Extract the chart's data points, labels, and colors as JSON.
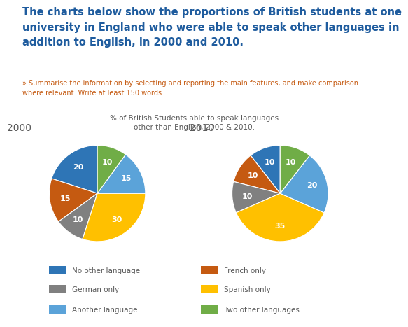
{
  "title": "The charts below show the proportions of British students at one\nuniversity in England who were able to speak other languages in\naddition to English, in 2000 and 2010.",
  "subtitle": "» Summarise the information by selecting and reporting the main features, and make comparison\nwhere relevant. Write at least 150 words.",
  "chart_title": "% of British Students able to speak languages\nother than English, 2000 & 2010.",
  "categories": [
    "No other language",
    "French only",
    "German only",
    "Spanish only",
    "Another language",
    "Two other languages"
  ],
  "colors": [
    "#2E75B6",
    "#C55A11",
    "#808080",
    "#FFC000",
    "#5BA3D9",
    "#70AD47"
  ],
  "year2000": [
    20,
    15,
    10,
    30,
    15,
    10
  ],
  "year2010": [
    10,
    10,
    10,
    35,
    20,
    10
  ],
  "label2000": "2000",
  "label2010": "2010",
  "bg_color": "#FFFFFF",
  "title_color": "#1F5C9E",
  "subtitle_color": "#C55A11",
  "chart_title_color": "#595959",
  "year_label_color": "#595959",
  "legend_text_color": "#595959"
}
